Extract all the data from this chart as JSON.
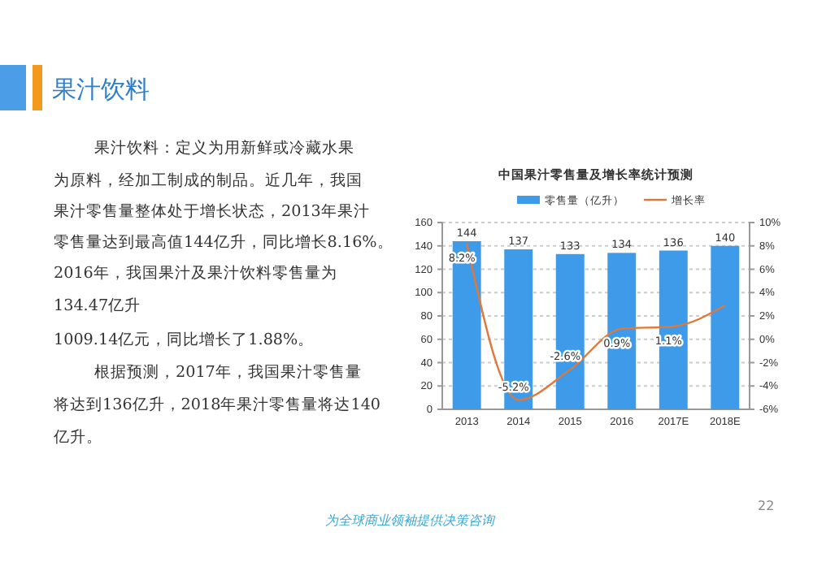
{
  "chart_data": {
    "type": "bar",
    "title": "中国果汁零售量及增长率统计预测",
    "categories": [
      "2013",
      "2014",
      "2015",
      "2016",
      "2017E",
      "2018E"
    ],
    "series": [
      {
        "name": "零售量（亿升）",
        "color": "#3d9be9",
        "values": [
          144,
          137,
          133,
          134,
          136,
          140
        ],
        "value_labels": [
          "144",
          "137",
          "133",
          "134",
          "136",
          "140"
        ]
      },
      {
        "name": "增长率",
        "type": "line",
        "axis": "y2",
        "color": "#e0783a",
        "values": [
          8.2,
          -5.2,
          -2.6,
          0.9,
          1.1,
          2.9
        ],
        "value_labels": [
          "8.2%",
          "-5.2%",
          "-2.6%",
          "0.9%",
          "1.1%",
          null
        ]
      }
    ],
    "ylim": [
      0,
      160
    ],
    "yticks": [
      0,
      20,
      40,
      60,
      80,
      100,
      120,
      140,
      160
    ],
    "y2lim": [
      -6,
      10
    ],
    "y2ticks": [
      {
        "value": -6,
        "label": "-6%"
      },
      {
        "value": -4,
        "label": "-4%"
      },
      {
        "value": -2,
        "label": "-2%"
      },
      {
        "value": 0,
        "label": "0%"
      },
      {
        "value": 2,
        "label": "2%"
      },
      {
        "value": 4,
        "label": "4%"
      },
      {
        "value": 6,
        "label": "6%"
      },
      {
        "value": 8,
        "label": "8%"
      },
      {
        "value": 10,
        "label": "10%"
      }
    ],
    "grid": "y",
    "legend": "top",
    "marker": "none",
    "line_style": "solid",
    "annotations": [
      "果汁饮料",
      "果汁饮料：定义为用新鲜或冷藏水果",
      "为原料，经加工制成的制品。近几年，我国",
      "果汁零售量整体处于增长状态，2013年果汁",
      "零售量达到最高值144亿升，同比增长8.16%。",
      "2016年，我国果汁及果汁饮料零售量为",
      "134.47亿升",
      "1009.14亿元，同比增长了1.88%。",
      "根据预测，2017年，我国果汁零售量",
      "将达到136亿升，2018年果汁零售量将达140",
      "亿升。",
      "为全球商业领袖提供决策咨询",
      "22"
    ]
  }
}
